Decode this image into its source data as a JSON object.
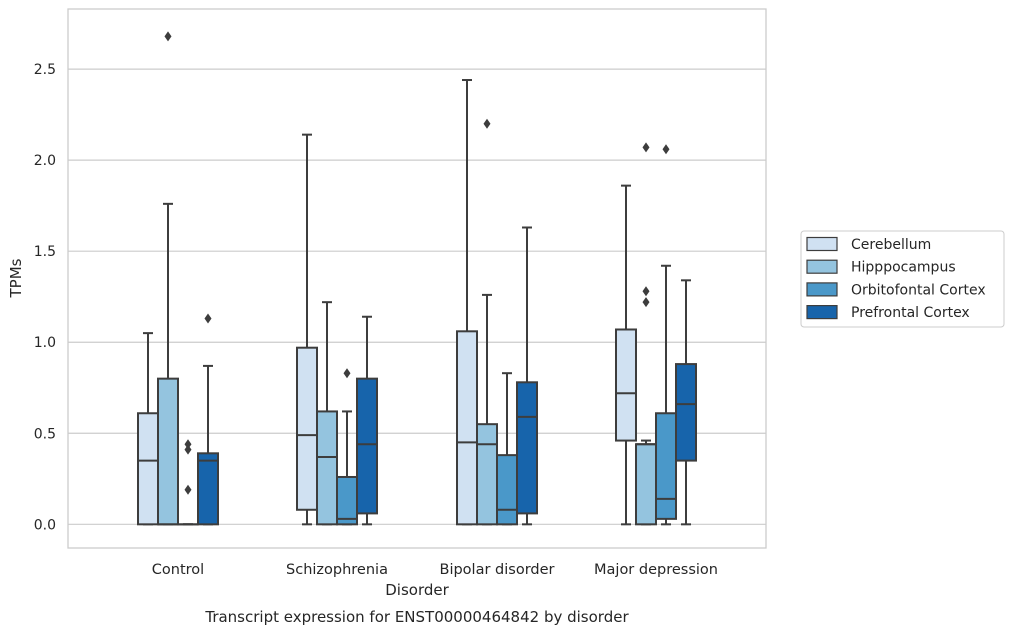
{
  "chart_data": {
    "type": "box",
    "title": "",
    "caption": "Transcript expression for ENST00000464842 by disorder",
    "xlabel": "Disorder",
    "ylabel": "TPMs",
    "ylim": [
      -0.13,
      2.83
    ],
    "yticks": [
      0.0,
      0.5,
      1.0,
      1.5,
      2.0,
      2.5
    ],
    "ytick_labels": [
      "0.0",
      "0.5",
      "1.0",
      "1.5",
      "2.0",
      "2.5"
    ],
    "grid": "horizontal",
    "legend_position": "right",
    "categories": [
      "Control",
      "Schizophrenia",
      "Bipolar disorder",
      "Major depression"
    ],
    "series": [
      {
        "name": "Cerebellum",
        "color": "#d0e1f2",
        "boxes": [
          {
            "whislo": 0.0,
            "q1": 0.0,
            "med": 0.35,
            "q3": 0.61,
            "whishi": 1.05,
            "fliers": []
          },
          {
            "whislo": 0.0,
            "q1": 0.08,
            "med": 0.49,
            "q3": 0.97,
            "whishi": 2.14,
            "fliers": []
          },
          {
            "whislo": 0.0,
            "q1": 0.0,
            "med": 0.45,
            "q3": 1.06,
            "whishi": 2.44,
            "fliers": []
          },
          {
            "whislo": 0.0,
            "q1": 0.46,
            "med": 0.72,
            "q3": 1.07,
            "whishi": 1.86,
            "fliers": []
          }
        ]
      },
      {
        "name": "Hipppocampus",
        "color": "#94c4df",
        "boxes": [
          {
            "whislo": 0.0,
            "q1": 0.0,
            "med": 0.0,
            "q3": 0.8,
            "whishi": 1.76,
            "fliers": [
              2.68
            ]
          },
          {
            "whislo": 0.0,
            "q1": 0.0,
            "med": 0.37,
            "q3": 0.62,
            "whishi": 1.22,
            "fliers": []
          },
          {
            "whislo": 0.0,
            "q1": 0.0,
            "med": 0.44,
            "q3": 0.55,
            "whishi": 1.26,
            "fliers": [
              2.2
            ]
          },
          {
            "whislo": 0.0,
            "q1": 0.0,
            "med": 0.44,
            "q3": 0.44,
            "whishi": 0.46,
            "fliers": [
              1.22,
              1.28,
              2.07
            ]
          }
        ]
      },
      {
        "name": "Orbitofontal Cortex",
        "color": "#4a98c9",
        "boxes": [
          {
            "whislo": 0.0,
            "q1": 0.0,
            "med": 0.0,
            "q3": 0.0,
            "whishi": 0.0,
            "fliers": [
              0.19,
              0.41,
              0.44
            ]
          },
          {
            "whislo": 0.0,
            "q1": 0.0,
            "med": 0.03,
            "q3": 0.26,
            "whishi": 0.62,
            "fliers": [
              0.83
            ]
          },
          {
            "whislo": 0.0,
            "q1": 0.0,
            "med": 0.08,
            "q3": 0.38,
            "whishi": 0.83,
            "fliers": []
          },
          {
            "whislo": 0.0,
            "q1": 0.03,
            "med": 0.14,
            "q3": 0.61,
            "whishi": 1.42,
            "fliers": [
              2.06
            ]
          }
        ]
      },
      {
        "name": "Prefrontal Cortex",
        "color": "#1764ab",
        "boxes": [
          {
            "whislo": 0.0,
            "q1": 0.0,
            "med": 0.35,
            "q3": 0.39,
            "whishi": 0.87,
            "fliers": [
              1.13
            ]
          },
          {
            "whislo": 0.0,
            "q1": 0.06,
            "med": 0.44,
            "q3": 0.8,
            "whishi": 1.14,
            "fliers": []
          },
          {
            "whislo": 0.0,
            "q1": 0.06,
            "med": 0.59,
            "q3": 0.78,
            "whishi": 1.63,
            "fliers": []
          },
          {
            "whislo": 0.0,
            "q1": 0.35,
            "med": 0.66,
            "q3": 0.88,
            "whishi": 1.34,
            "fliers": []
          }
        ]
      }
    ]
  }
}
